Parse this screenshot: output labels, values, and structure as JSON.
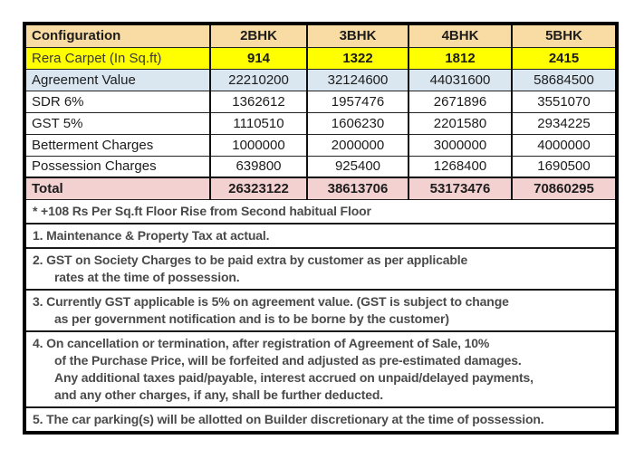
{
  "table": {
    "header": {
      "label": "Configuration",
      "columns": [
        "2BHK",
        "3BHK",
        "4BHK",
        "5BHK"
      ]
    },
    "rows": [
      {
        "label": "Rera Carpet (In Sq.ft)",
        "style": "yellow",
        "values": [
          "914",
          "1322",
          "1812",
          "2415"
        ]
      },
      {
        "label": "Agreement Value",
        "style": "blue",
        "values": [
          "22210200",
          "32124600",
          "44031600",
          "58684500"
        ]
      },
      {
        "label": "SDR 6%",
        "style": "white",
        "values": [
          "1362612",
          "1957476",
          "2671896",
          "3551070"
        ]
      },
      {
        "label": "GST 5%",
        "style": "white",
        "values": [
          "1110510",
          "1606230",
          "2201580",
          "2934225"
        ]
      },
      {
        "label": "Betterment Charges",
        "style": "white",
        "values": [
          "1000000",
          "2000000",
          "3000000",
          "4000000"
        ]
      },
      {
        "label": "Possession Charges",
        "style": "white",
        "values": [
          "639800",
          "925400",
          "1268400",
          "1690500"
        ]
      },
      {
        "label": "Total",
        "style": "pink",
        "values": [
          "26323122",
          "38613706",
          "53173476",
          "70860295"
        ]
      }
    ]
  },
  "notes": [
    {
      "lines": [
        "* +108 Rs Per Sq.ft Floor Rise from Second habitual Floor"
      ]
    },
    {
      "lines": [
        "1. Maintenance & Property Tax at actual."
      ]
    },
    {
      "lines": [
        "2. GST on Society Charges to be paid extra by customer as per applicable",
        "rates at the time of possession."
      ]
    },
    {
      "lines": [
        "3. Currently GST applicable is 5% on agreement value. (GST is subject to change",
        "as per government notification and is to be borne by the customer)"
      ]
    },
    {
      "lines": [
        "4. On cancellation or termination, after registration of Agreement of Sale, 10%",
        "of the Purchase Price, will be forfeited and adjusted as pre-estimated damages.",
        "Any additional taxes paid/payable, interest accrued on unpaid/delayed payments,",
        "and any other charges, if any, shall be further deducted."
      ]
    },
    {
      "lines": [
        "5. The car parking(s) will be allotted on Builder discretionary at the time of possession."
      ]
    }
  ],
  "colors": {
    "header_bg": "#F9DCA4",
    "rera_row_bg": "#FFFF00",
    "agreement_row_bg": "#DAE7F1",
    "total_row_bg": "#F3D1D1",
    "border": "#000000",
    "notes_text": "#4a4a4a"
  }
}
